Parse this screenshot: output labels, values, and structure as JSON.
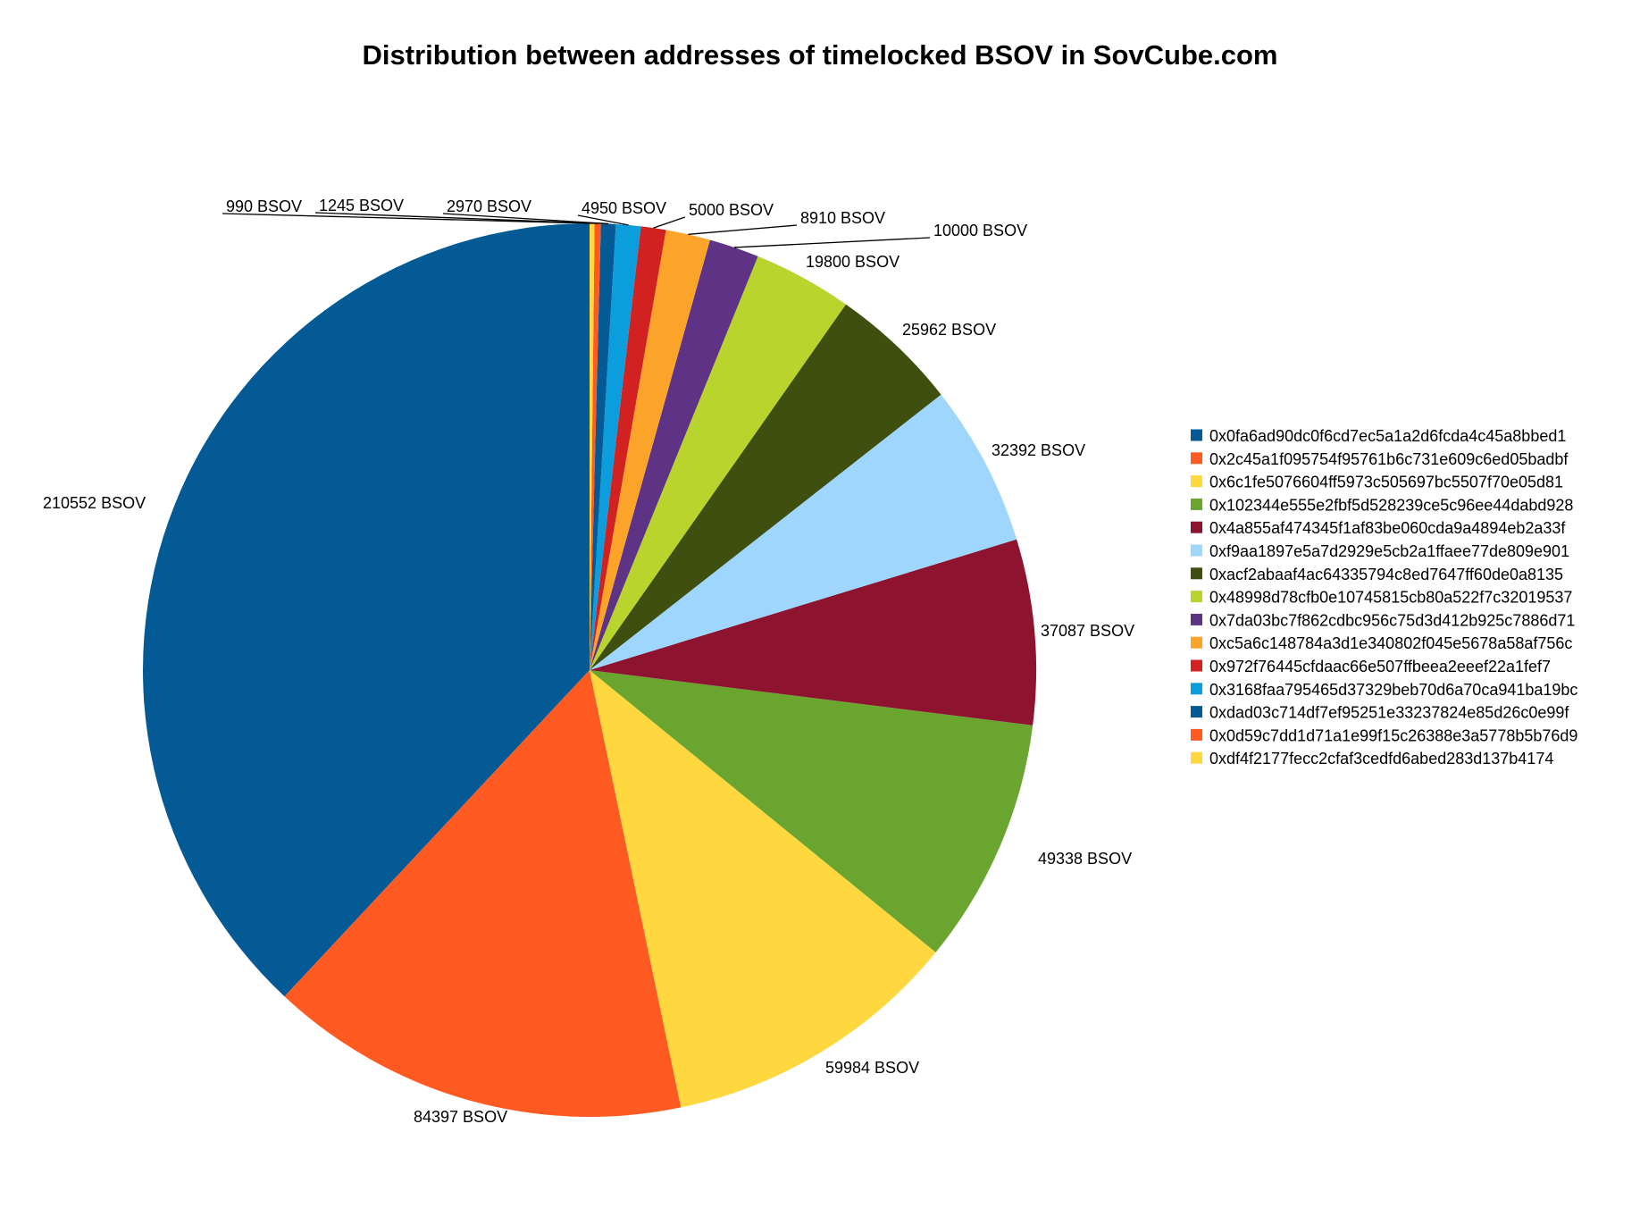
{
  "chart_data": {
    "type": "pie",
    "title": "Distribution between addresses of timelocked BSOV in SovCube.com",
    "unit_label": "BSOV",
    "legend_position": "right",
    "slices": [
      {
        "name": "0x0fa6ad90dc0f6cd7ec5a1a2d6fcda4c45a8bbed1",
        "value": 210552,
        "label": "210552 BSOV",
        "color": "#045A94"
      },
      {
        "name": "0x2c45a1f095754f95761b6c731e609c6ed05badbf",
        "value": 84397,
        "label": "84397 BSOV",
        "color": "#FF5A22"
      },
      {
        "name": "0x6c1fe5076604ff5973c505697bc5507f70e05d81",
        "value": 59984,
        "label": "59984 BSOV",
        "color": "#FFD73E"
      },
      {
        "name": "0x102344e555e2fbf5d528239ce5c96ee44dabd928",
        "value": 49338,
        "label": "49338 BSOV",
        "color": "#6AA530"
      },
      {
        "name": "0x4a855af474345f1af83be060cda9a4894eb2a33f",
        "value": 37087,
        "label": "37087 BSOV",
        "color": "#8D132F"
      },
      {
        "name": "0xf9aa1897e5a7d2929e5cb2a1ffaee77de809e901",
        "value": 32392,
        "label": "32392 BSOV",
        "color": "#9ED6FD"
      },
      {
        "name": "0xacf2abaaf4ac64335794c8ed7647ff60de0a8135",
        "value": 25962,
        "label": "25962 BSOV",
        "color": "#3E4F0F"
      },
      {
        "name": "0x48998d78cfb0e10745815cb80a522f7c32019537",
        "value": 19800,
        "label": "19800 BSOV",
        "color": "#B8D42D"
      },
      {
        "name": "0x7da03bc7f862cdbc956c75d3d412b925c7886d71",
        "value": 10000,
        "label": "10000 BSOV",
        "color": "#5E3285"
      },
      {
        "name": "0xc5a6c148784a3d1e340802f045e5678a58af756c",
        "value": 8910,
        "label": "8910 BSOV",
        "color": "#FCA329"
      },
      {
        "name": "0x972f76445cfdaac66e507ffbeea2eeef22a1fef7",
        "value": 5000,
        "label": "5000 BSOV",
        "color": "#D12120"
      },
      {
        "name": "0x3168faa795465d37329beb70d6a70ca941ba19bc",
        "value": 4950,
        "label": "4950 BSOV",
        "color": "#0C9DDC"
      },
      {
        "name": "0xdad03c714df7ef95251e33237824e85d26c0e99f",
        "value": 2970,
        "label": "2970 BSOV",
        "color": "#045A94"
      },
      {
        "name": "0x0d59c7dd1d71a1e99f15c26388e3a5778b5b76d9",
        "value": 1245,
        "label": "1245 BSOV",
        "color": "#FF5A22"
      },
      {
        "name": "0xdf4f2177fecc2cfaf3cedfd6abed283d137b4174",
        "value": 990,
        "label": "990 BSOV",
        "color": "#FFD73E"
      }
    ]
  }
}
